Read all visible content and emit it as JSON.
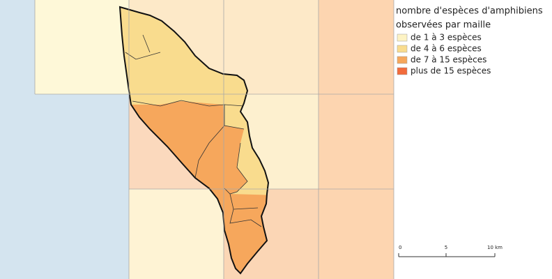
{
  "legend": {
    "title": [
      "nombre d'espèces d'amphibiens",
      "observées par maille"
    ],
    "items": [
      {
        "label": "de 1 à 3 espèces",
        "color": "#fdf3c4"
      },
      {
        "label": "de 4 à 6 espèces",
        "color": "#f9dc8e"
      },
      {
        "label": "de 7 à 15 espèces",
        "color": "#f6a75c"
      },
      {
        "label": "plus de 15 espèces",
        "color": "#f26b3c"
      }
    ]
  },
  "scale_bar": {
    "labels": [
      "0",
      "5",
      "10 km"
    ]
  }
}
